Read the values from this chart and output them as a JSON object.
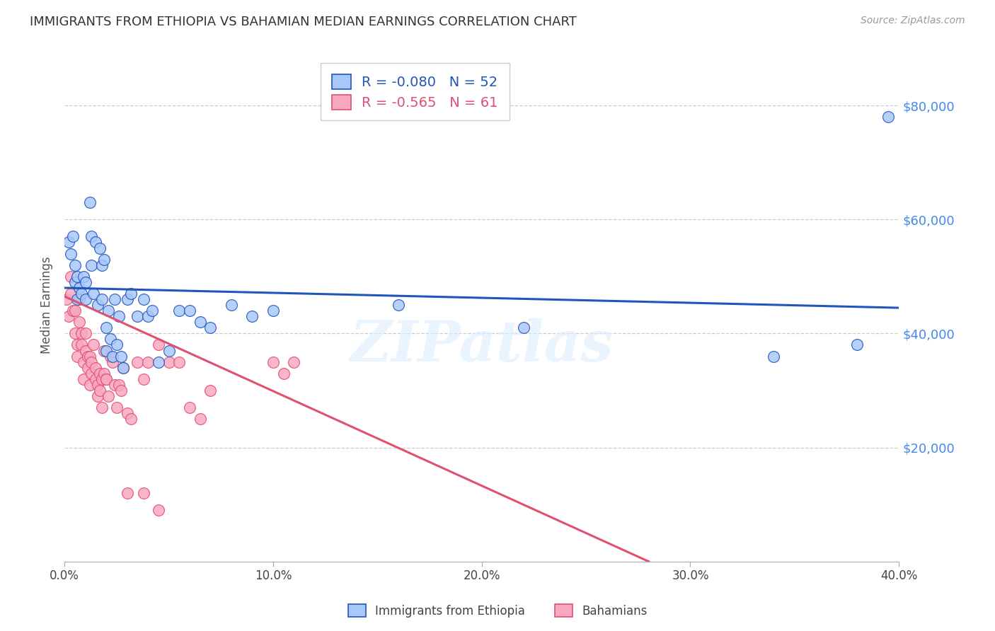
{
  "title": "IMMIGRANTS FROM ETHIOPIA VS BAHAMIAN MEDIAN EARNINGS CORRELATION CHART",
  "source": "Source: ZipAtlas.com",
  "xlabel_ticks": [
    "0.0%",
    "10.0%",
    "20.0%",
    "30.0%",
    "40.0%"
  ],
  "xlabel_tick_vals": [
    0.0,
    0.1,
    0.2,
    0.3,
    0.4
  ],
  "ylabel": "Median Earnings",
  "ylabel_ticks": [
    "$20,000",
    "$40,000",
    "$60,000",
    "$80,000"
  ],
  "ylabel_tick_vals": [
    20000,
    40000,
    60000,
    80000
  ],
  "xlim": [
    0,
    0.4
  ],
  "ylim": [
    0,
    90000
  ],
  "watermark": "ZIPatlas",
  "legend_r1": "-0.080",
  "legend_n1": "52",
  "legend_r2": "-0.565",
  "legend_n2": "61",
  "series1_color": "#a8c8f8",
  "series2_color": "#f8a8c0",
  "line1_color": "#2255bb",
  "line2_color": "#e05070",
  "blue_line_x": [
    0.0,
    0.4
  ],
  "blue_line_y": [
    48000,
    44500
  ],
  "pink_line_x": [
    0.0,
    0.28
  ],
  "pink_line_y": [
    46500,
    0
  ],
  "blue_scatter_x": [
    0.002,
    0.003,
    0.004,
    0.005,
    0.005,
    0.006,
    0.006,
    0.007,
    0.008,
    0.009,
    0.01,
    0.01,
    0.012,
    0.013,
    0.013,
    0.014,
    0.015,
    0.016,
    0.017,
    0.018,
    0.018,
    0.019,
    0.02,
    0.02,
    0.021,
    0.022,
    0.023,
    0.024,
    0.025,
    0.026,
    0.027,
    0.028,
    0.03,
    0.032,
    0.035,
    0.038,
    0.04,
    0.042,
    0.045,
    0.05,
    0.055,
    0.06,
    0.065,
    0.07,
    0.08,
    0.09,
    0.1,
    0.16,
    0.22,
    0.34,
    0.38,
    0.395
  ],
  "blue_scatter_y": [
    56000,
    54000,
    57000,
    49000,
    52000,
    50000,
    46000,
    48000,
    47000,
    50000,
    46000,
    49000,
    63000,
    57000,
    52000,
    47000,
    56000,
    45000,
    55000,
    52000,
    46000,
    53000,
    37000,
    41000,
    44000,
    39000,
    36000,
    46000,
    38000,
    43000,
    36000,
    34000,
    46000,
    47000,
    43000,
    46000,
    43000,
    44000,
    35000,
    37000,
    44000,
    44000,
    42000,
    41000,
    45000,
    43000,
    44000,
    45000,
    41000,
    36000,
    38000,
    78000
  ],
  "pink_scatter_x": [
    0.001,
    0.002,
    0.003,
    0.003,
    0.004,
    0.005,
    0.005,
    0.006,
    0.006,
    0.007,
    0.007,
    0.008,
    0.008,
    0.009,
    0.009,
    0.01,
    0.01,
    0.011,
    0.011,
    0.012,
    0.012,
    0.013,
    0.013,
    0.014,
    0.015,
    0.015,
    0.016,
    0.016,
    0.017,
    0.017,
    0.018,
    0.018,
    0.019,
    0.019,
    0.02,
    0.02,
    0.021,
    0.022,
    0.023,
    0.024,
    0.025,
    0.026,
    0.027,
    0.028,
    0.03,
    0.032,
    0.035,
    0.038,
    0.04,
    0.045,
    0.05,
    0.055,
    0.06,
    0.065,
    0.07,
    0.03,
    0.038,
    0.045,
    0.1,
    0.105,
    0.11
  ],
  "pink_scatter_y": [
    46000,
    43000,
    47000,
    50000,
    44000,
    40000,
    44000,
    36000,
    38000,
    42000,
    46000,
    38000,
    40000,
    32000,
    35000,
    37000,
    40000,
    34000,
    36000,
    31000,
    36000,
    33000,
    35000,
    38000,
    32000,
    34000,
    29000,
    31000,
    33000,
    30000,
    27000,
    32000,
    33000,
    37000,
    32000,
    32000,
    29000,
    36000,
    35000,
    31000,
    27000,
    31000,
    30000,
    34000,
    26000,
    25000,
    35000,
    32000,
    35000,
    38000,
    35000,
    35000,
    27000,
    25000,
    30000,
    12000,
    12000,
    9000,
    35000,
    33000,
    35000
  ]
}
